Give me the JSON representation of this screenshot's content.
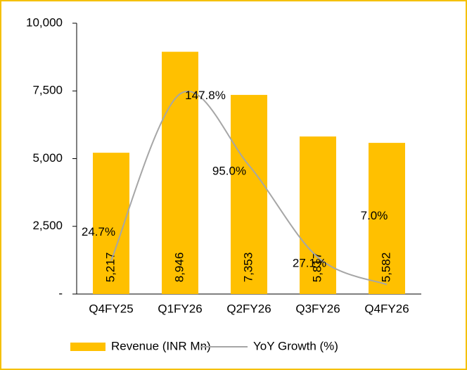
{
  "chart_data": {
    "type": "bar_line",
    "categories": [
      "Q4FY25",
      "Q1FY26",
      "Q2FY26",
      "Q3FY26",
      "Q4FY26"
    ],
    "series": [
      {
        "name": "Revenue (INR Mn)",
        "type": "bar",
        "color": "#ffc000",
        "values": [
          5217,
          8946,
          7353,
          5817,
          5582
        ],
        "value_labels": [
          "5,217",
          "8,946",
          "7,353",
          "5,817",
          "5,582"
        ]
      },
      {
        "name": "YoY Growth (%)",
        "type": "line",
        "axis": "y2",
        "color": "#a6a6a6",
        "values": [
          24.7,
          147.8,
          95.0,
          27.1,
          7.0
        ],
        "value_labels": [
          "24.7%",
          "147.8%",
          "95.0%",
          "27.1%",
          "7.0%"
        ]
      }
    ],
    "ylim": [
      0,
      10000
    ],
    "yticks": [
      {
        "value": 0,
        "label": "-"
      },
      {
        "value": 2500,
        "label": "2,500"
      },
      {
        "value": 5000,
        "label": "5,000"
      },
      {
        "value": 7500,
        "label": "7,500"
      },
      {
        "value": 10000,
        "label": "10,000"
      }
    ],
    "y2lim": [
      0,
      200
    ],
    "legend": "bottom"
  }
}
